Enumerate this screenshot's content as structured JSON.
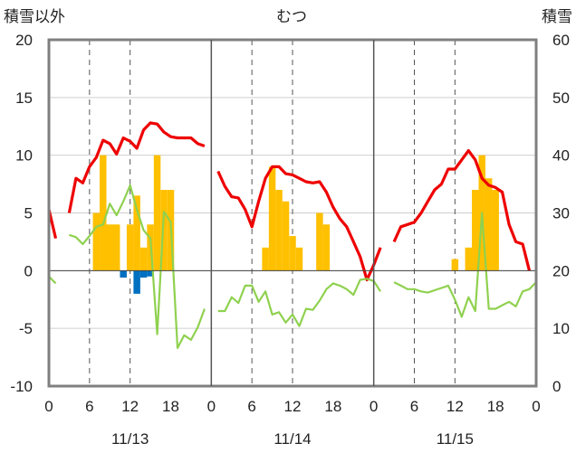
{
  "chart_data": {
    "type": "bar+line",
    "title": "むつ",
    "left_axis_label": "積雪以外",
    "right_axis_label": "積雪",
    "left_ylim": [
      -10,
      20
    ],
    "right_ylim": [
      0,
      60
    ],
    "left_ticks": [
      "20",
      "15",
      "10",
      "5",
      "0",
      "-5",
      "-10"
    ],
    "right_ticks": [
      "60",
      "50",
      "40",
      "30",
      "20",
      "10",
      "0"
    ],
    "x_tick_labels": [
      "0",
      "6",
      "12",
      "18",
      "0",
      "6",
      "12",
      "18",
      "0",
      "6",
      "12",
      "18",
      "0"
    ],
    "date_labels": [
      "11/13",
      "11/14",
      "11/15"
    ],
    "x_range_hours": [
      0,
      72
    ],
    "grid": "dashed vertical lines at 06 and 12 each day; solid day separators",
    "series": [
      {
        "color": "#ee0000",
        "points": [
          [
            0,
            5.3
          ],
          [
            1,
            2.8
          ],
          null,
          [
            3,
            5
          ],
          [
            4,
            8
          ],
          [
            5,
            7.6
          ],
          [
            6,
            9
          ],
          [
            7,
            9.8
          ],
          [
            8,
            11.3
          ],
          [
            9,
            11
          ],
          [
            10,
            10.1
          ],
          [
            11,
            11.5
          ],
          [
            12,
            11.2
          ],
          [
            13,
            10.6
          ],
          [
            14,
            12.2
          ],
          [
            15,
            12.8
          ],
          [
            16,
            12.7
          ],
          [
            17,
            12
          ],
          [
            18,
            11.6
          ],
          [
            19,
            11.5
          ],
          [
            20,
            11.5
          ],
          [
            21,
            11.5
          ],
          [
            22,
            11
          ],
          [
            23,
            10.8
          ],
          null,
          [
            25,
            8.6
          ],
          [
            26,
            7.3
          ],
          [
            27,
            6.4
          ],
          [
            28,
            6.3
          ],
          [
            29,
            5.3
          ],
          [
            30,
            3.8
          ],
          [
            31,
            6
          ],
          [
            32,
            8
          ],
          [
            33,
            9
          ],
          [
            34,
            9
          ],
          [
            35,
            8.4
          ],
          [
            36,
            8.3
          ],
          [
            37,
            8
          ],
          [
            38,
            7.7
          ],
          [
            39,
            7.6
          ],
          [
            40,
            7.7
          ],
          [
            41,
            6.8
          ],
          [
            42,
            5.5
          ],
          [
            43,
            4.5
          ],
          [
            44,
            3.8
          ],
          [
            45,
            2.5
          ],
          [
            46,
            1.2
          ],
          [
            47,
            -0.8
          ],
          [
            48,
            0.5
          ],
          [
            49,
            2
          ],
          null,
          [
            51,
            2.5
          ],
          [
            52,
            3.8
          ],
          [
            53,
            4
          ],
          [
            54,
            4.2
          ],
          [
            55,
            5
          ],
          [
            56,
            6
          ],
          [
            57,
            7
          ],
          [
            58,
            7.5
          ],
          [
            59,
            8.8
          ],
          [
            60,
            8.8
          ],
          [
            61,
            9.6
          ],
          [
            62,
            10.4
          ],
          [
            63,
            9.6
          ],
          [
            64,
            8
          ],
          [
            65,
            7.4
          ],
          [
            66,
            7.2
          ],
          [
            67,
            6.8
          ],
          [
            68,
            4
          ],
          [
            69,
            2.5
          ],
          [
            70,
            2.3
          ],
          [
            71,
            0
          ]
        ]
      },
      {
        "color": "#8fd14f",
        "points": [
          [
            0,
            -0.5
          ],
          [
            1,
            -1.1
          ],
          null,
          [
            3,
            3.1
          ],
          [
            4,
            2.9
          ],
          [
            5,
            2.3
          ],
          [
            6,
            3
          ],
          [
            7,
            3.8
          ],
          [
            8,
            4
          ],
          [
            9,
            5.8
          ],
          [
            10,
            4.8
          ],
          [
            11,
            6
          ],
          [
            12,
            7.4
          ],
          [
            13,
            5.3
          ],
          [
            14,
            3.5
          ],
          [
            15,
            2.8
          ],
          [
            16,
            -5.5
          ],
          [
            17,
            5.1
          ],
          [
            18,
            4.2
          ],
          [
            19,
            -6.7
          ],
          [
            20,
            -5.6
          ],
          [
            21,
            -6
          ],
          [
            22,
            -4.9
          ],
          [
            23,
            -3.3
          ],
          null,
          [
            25,
            -3.5
          ],
          [
            26,
            -3.5
          ],
          [
            27,
            -2.3
          ],
          [
            28,
            -2.8
          ],
          [
            29,
            -1.3
          ],
          [
            30,
            -1.3
          ],
          [
            31,
            -2.7
          ],
          [
            32,
            -1.8
          ],
          [
            33,
            -3.8
          ],
          [
            34,
            -3.6
          ],
          [
            35,
            -4.5
          ],
          [
            36,
            -3.8
          ],
          [
            37,
            -4.8
          ],
          [
            38,
            -3.3
          ],
          [
            39,
            -3.4
          ],
          [
            40,
            -2.6
          ],
          [
            41,
            -1.6
          ],
          [
            42,
            -1.1
          ],
          [
            43,
            -1.3
          ],
          [
            44,
            -1.6
          ],
          [
            45,
            -2.1
          ],
          [
            46,
            -0.8
          ],
          [
            47,
            -0.7
          ],
          [
            48,
            -0.9
          ],
          [
            49,
            -1.8
          ],
          null,
          [
            51,
            -1
          ],
          [
            52,
            -1.3
          ],
          [
            53,
            -1.6
          ],
          [
            54,
            -1.6
          ],
          [
            55,
            -1.8
          ],
          [
            56,
            -1.9
          ],
          [
            57,
            -1.7
          ],
          [
            58,
            -1.5
          ],
          [
            59,
            -1.3
          ],
          [
            60,
            -2.5
          ],
          [
            61,
            -4
          ],
          [
            62,
            -2.3
          ],
          [
            63,
            -3.5
          ],
          [
            64,
            5
          ],
          [
            65,
            -3.3
          ],
          [
            66,
            -3.3
          ],
          [
            67,
            -3
          ],
          [
            68,
            -2.7
          ],
          [
            69,
            -3.1
          ],
          [
            70,
            -1.8
          ],
          [
            71,
            -1.6
          ],
          [
            72,
            -1
          ]
        ]
      },
      {
        "color": "#7030a0",
        "points": [
          [
            0,
            -10
          ],
          [
            72,
            -10
          ]
        ]
      }
    ],
    "bars_positive": {
      "color": "#ffc000",
      "values": [
        [
          7,
          5
        ],
        [
          8,
          10
        ],
        [
          9,
          4
        ],
        [
          10,
          4
        ],
        [
          12,
          4
        ],
        [
          13,
          6.5
        ],
        [
          14,
          2
        ],
        [
          15,
          4
        ],
        [
          16,
          10
        ],
        [
          17,
          7
        ],
        [
          18,
          7
        ],
        [
          32,
          2
        ],
        [
          33,
          9
        ],
        [
          34,
          7
        ],
        [
          35,
          6
        ],
        [
          36,
          3
        ],
        [
          37,
          2
        ],
        [
          40,
          5
        ],
        [
          41,
          4
        ],
        [
          60,
          1
        ],
        [
          62,
          2
        ],
        [
          63,
          7
        ],
        [
          64,
          10
        ],
        [
          65,
          8
        ],
        [
          66,
          7
        ]
      ]
    },
    "bars_negative": {
      "color": "#0070c0",
      "values": [
        [
          11,
          -0.6
        ],
        [
          13,
          -2
        ],
        [
          14,
          -0.6
        ],
        [
          15,
          -0.5
        ]
      ]
    }
  }
}
